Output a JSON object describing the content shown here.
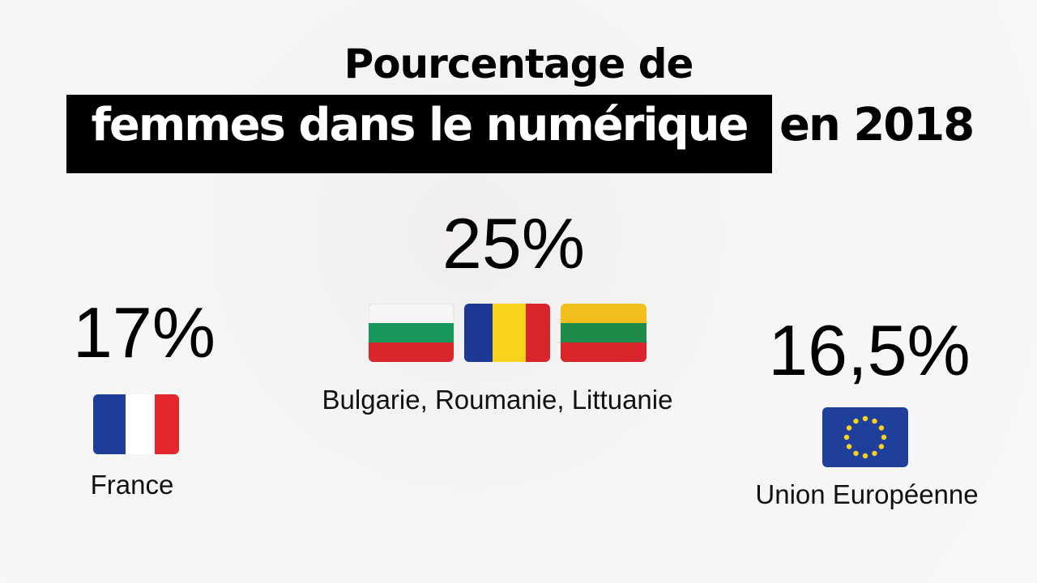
{
  "title": {
    "line1": "Pourcentage de",
    "highlight": "femmes dans le numérique",
    "rest": "en 2018"
  },
  "stats": [
    {
      "value": "17%",
      "label": "France"
    },
    {
      "value": "25%",
      "label": "Bulgarie, Roumanie, Littuanie"
    },
    {
      "value": "16,5%",
      "label": "Union Européenne"
    }
  ]
}
